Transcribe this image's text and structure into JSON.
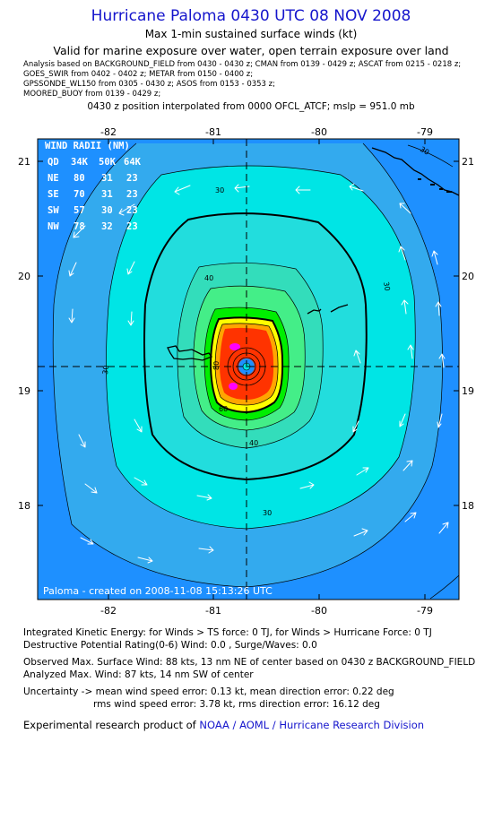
{
  "header": {
    "title": "Hurricane Paloma 0430 UTC 08 NOV 2008",
    "subtitle1": "Max 1-min sustained surface winds (kt)",
    "subtitle2": "Valid for marine exposure over water, open terrain exposure over land",
    "sources": [
      "Analysis based on  BACKGROUND_FIELD from 0430 - 0430 z;  CMAN from 0139 - 0429 z;  ASCAT from 0215 - 0218 z;",
      "GOES_SWIR from 0402 - 0402 z;  METAR from 0150 - 0400 z;",
      "GPSSONDE_WL150 from 0305 - 0430 z;  ASOS from 0153 - 0353 z;",
      "MOORED_BUOY from 0139 - 0429 z;"
    ],
    "position_line": "0430 z position interpolated from 0000 OFCL_ATCF; mslp = 951.0 mb"
  },
  "map": {
    "lon_range": [
      -82.7,
      -78.8
    ],
    "lat_range": [
      17.35,
      21.2
    ],
    "lon_ticks": [
      -82,
      -81,
      -80,
      -79
    ],
    "lon_tick_labels": [
      "-82",
      "-81",
      "-80",
      "-79"
    ],
    "lat_ticks": [
      21,
      20,
      19,
      18
    ],
    "lat_tick_labels": [
      "21",
      "20",
      "19",
      "18"
    ],
    "center": {
      "lon": -80.62,
      "lat": 19.18
    },
    "contour_labels": [
      "30",
      "30",
      "30",
      "30",
      "30",
      "40",
      "40",
      "60",
      "80"
    ],
    "created_label": "Paloma - created on 2008-11-08 15:13:26 UTC",
    "colors": {
      "ocean_blue": "#1e90ff",
      "light_blue": "#33aaee",
      "cyan_light": "#00e5e5",
      "cyan": "#22dddd",
      "cyan_mid": "#33ddbb",
      "green_light": "#44ee88",
      "green": "#00ee00",
      "yellow": "#ffff00",
      "orange": "#ffa500",
      "red": "#ff3300",
      "magenta": "#ff00ff"
    }
  },
  "wind_radii": {
    "title": "WIND RADII (NM)",
    "header": [
      "QD",
      "34K",
      "50K",
      "64K"
    ],
    "rows": [
      [
        "NE",
        "80",
        "31",
        "23"
      ],
      [
        "SE",
        "70",
        "31",
        "23"
      ],
      [
        "SW",
        "57",
        "30",
        "23"
      ],
      [
        "NW",
        "78",
        "32",
        "23"
      ]
    ]
  },
  "footer": {
    "ike": "Integrated Kinetic Energy:  for Winds > TS force: 0 TJ,  for Winds > Hurricane Force: 0 TJ",
    "dpr": "Destructive Potential Rating(0-6)   Wind: 0.0 , Surge/Waves: 0.0",
    "observed": "Observed Max. Surface Wind: 88 kts, 13 nm NE of center based on 0430 z BACKGROUND_FIELD",
    "analyzed": "Analyzed Max. Wind: 87 kts, 14 nm SW of center",
    "uncertainty1": "Uncertainty -> mean wind speed error: 0.13 kt,   mean direction error: 0.22 deg",
    "uncertainty2": "rms wind speed error: 3.78 kt,   rms direction error: 16.12 deg",
    "credit_prefix": "Experimental research product of ",
    "credit_org": "NOAA / AOML / Hurricane Research Division"
  }
}
